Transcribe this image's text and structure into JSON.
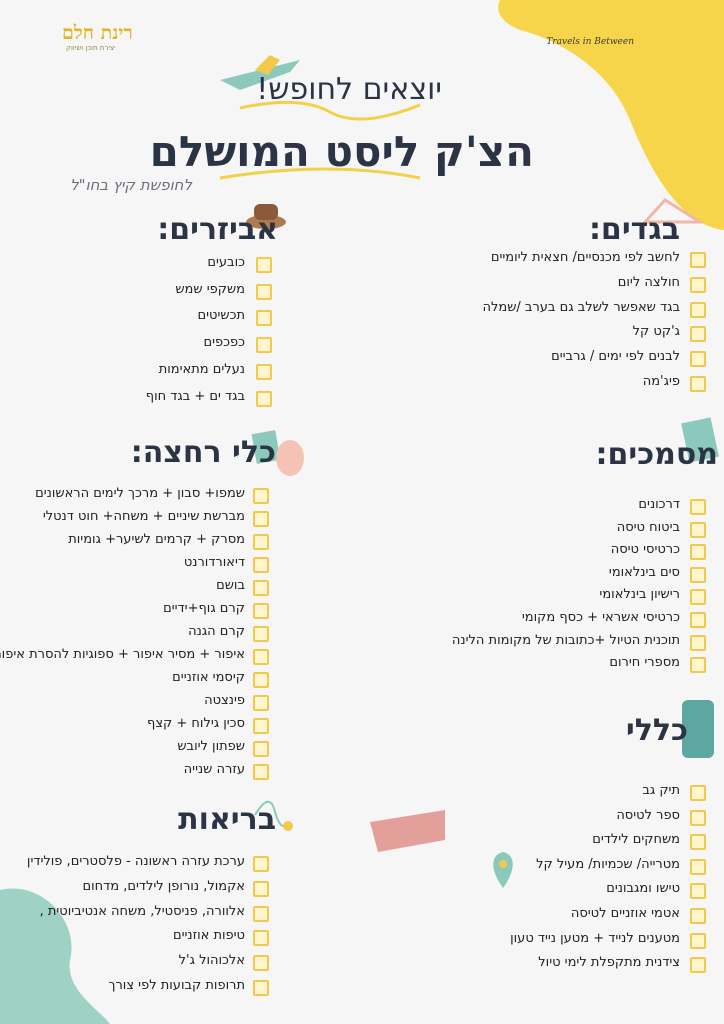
{
  "header": {
    "logo_left": "רינת חלם",
    "logo_left_tagline": "יצירת תוכן ושיווק",
    "logo_right": "Travels in Between",
    "pretitle": "יוצאים לחופש!",
    "title": "הצ'ק ליסט המושלם",
    "subtitle": "לחופשת קיץ בחו\"ל"
  },
  "sections": [
    {
      "title": "בגדים:",
      "items": [
        "לחשב לפי מכנסיים/ חצאית ליומיים",
        "חולצה ליום",
        "בגד שאפשר לשלב גם בערב /שמלה",
        "ג'קט קל",
        "לבנים לפי ימים / גרביים",
        "פיג'מה"
      ]
    },
    {
      "title": "אביזרים:",
      "items": [
        "כובעים",
        "משקפי שמש",
        "תכשיטים",
        "כפכפים",
        "נעלים מתאימות",
        "בגד ים + בגד חוף"
      ]
    },
    {
      "title": "מסמכים:",
      "items": [
        "דרכונים",
        "ביטוח טיסה",
        "כרטיסי טיסה",
        "סים בינלאומי",
        "רישיון בינלאומי",
        "כרטיסי אשראי + כסף מקומי",
        "תוכנית הטיול +כתובות של מקומות הלינה",
        "מספרי חירום"
      ]
    },
    {
      "title": "כלי רחצה:",
      "items": [
        "שמפו+ סבון + מרכך לימים הראשונים",
        "מברשת שיניים + משחה+ חוט דנטלי",
        "מסרק + קרמים לשיער+ גומיות",
        "דיאורדורנט",
        "בושם",
        "קרם גוף+ידיים",
        "קרם הגנה",
        "איפור + מסיר איפור + ספוגיות להסרת איפור",
        "קיסמי אוזניים",
        "פינצטה",
        "סכין גילוח + קצף",
        "שפתון ליובש",
        "עזרה שנייה"
      ]
    },
    {
      "title": "כללי",
      "items": [
        "תיק גב",
        "ספר לטיסה",
        "משחקים לילדים",
        "מטרייה/ שכמיות/ מעיל קל",
        "טישו ומגבונים",
        "אטמי אוזניים לטיסה",
        "מטענים לנייד + מטען נייד טעון",
        "צידנית מתקפלת לימי טיול"
      ]
    },
    {
      "title": "בריאות",
      "items": [
        "ערכת עזרה ראשונה - פלסטרים, פולידין",
        "אקמול, נורופן לילדים, מדחום",
        "אלוורה, פניסטיל, משחה אנטיביוטית ,",
        "טיפות אוזניים",
        "אלכוהול ג'ל",
        "תרופות קבועות לפי צורך"
      ]
    }
  ]
}
